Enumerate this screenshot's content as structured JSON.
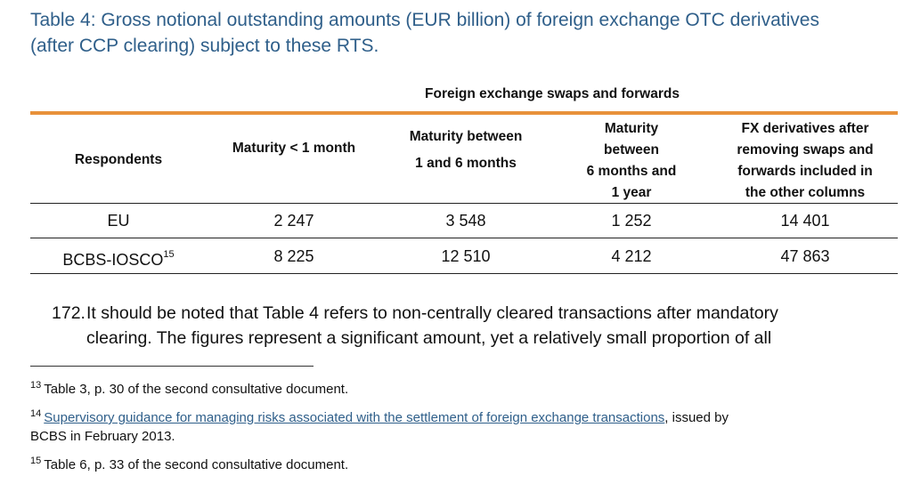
{
  "caption": {
    "line1": "Table 4: Gross notional outstanding amounts (EUR billion) of foreign exchange OTC derivatives",
    "line2": "(after CCP clearing) subject to these RTS."
  },
  "table": {
    "group_header": "Foreign exchange swaps and forwards",
    "columns": {
      "respondents": "Respondents",
      "lt1m": "Maturity < 1 month",
      "m1to6": [
        "Maturity between",
        "1 and 6 months"
      ],
      "m6to12": [
        "Maturity",
        "between",
        "6 months and",
        "1 year"
      ],
      "fx_other": [
        "FX derivatives after",
        "removing swaps and",
        "forwards included in",
        "the other columns"
      ]
    },
    "rows": [
      {
        "respondent": "EU",
        "footnote": "",
        "lt1m": "2 247",
        "m1to6": "3 548",
        "m6to12": "1 252",
        "fx_other": "14 401"
      },
      {
        "respondent": "BCBS-IOSCO",
        "footnote": "15",
        "lt1m": "8 225",
        "m1to6": "12 510",
        "m6to12": "4 212",
        "fx_other": "47 863"
      }
    ]
  },
  "paragraph": {
    "number": "172.",
    "line1": "It should be noted that Table 4 refers to non-centrally cleared transactions after mandatory",
    "line2": "clearing. The figures represent a significant amount, yet a relatively small proportion of all"
  },
  "footnotes": [
    {
      "num": "13",
      "text": "Table 3, p. 30 of the second consultative document."
    },
    {
      "num": "14",
      "link": "Supervisory guidance for managing risks associated with the settlement of foreign exchange transactions",
      "text": ", issued by",
      "text2": "BCBS in February 2013."
    },
    {
      "num": "15",
      "text": "Table 6, p. 33 of the second consultative document."
    }
  ],
  "colors": {
    "caption": "#2f5f8a",
    "accent_rule": "#e8913a",
    "link": "#2f5f8a"
  }
}
